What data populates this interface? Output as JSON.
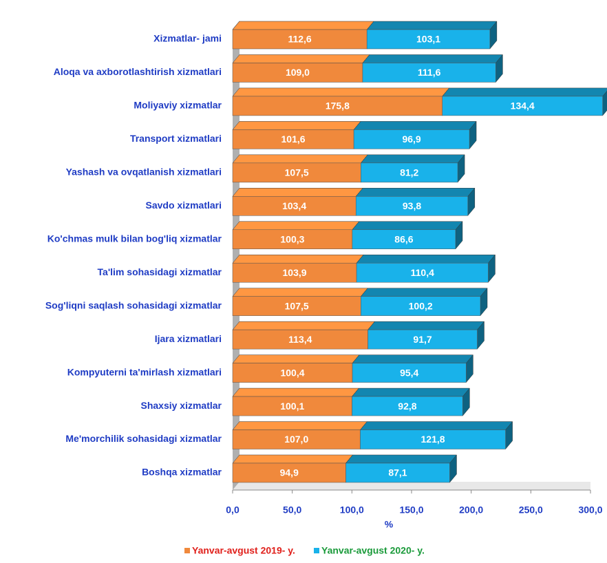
{
  "chart_data": {
    "type": "bar",
    "orientation": "horizontal",
    "stacked": true,
    "three_d": true,
    "categories": [
      "Xizmatlar- jami",
      "Aloqa va axborotlashtirish xizmatlari",
      "Moliyaviy xizmatlar",
      "Transport xizmatlari",
      "Yashash va ovqatlanish xizmatlari",
      "Savdo xizmatlari",
      "Ko'chmas mulk bilan bog'liq xizmatlar",
      "Ta'lim sohasidagi xizmatlar",
      "Sog'liqni saqlash sohasidagi xizmatlar",
      "Ijara xizmatlari",
      "Kompyuterni ta'mirlash xizmatlari",
      "Shaxsiy xizmatlar",
      "Me'morchilik sohasidagi xizmatlar",
      "Boshqa xizmatlar"
    ],
    "series": [
      {
        "name": "Yanvar-avgust 2019- y.",
        "color": "#f0893c",
        "legend_text_color": "#e0201b",
        "values": [
          112.6,
          109.0,
          175.8,
          101.6,
          107.5,
          103.4,
          100.3,
          103.9,
          107.5,
          113.4,
          100.4,
          100.1,
          107.0,
          94.9
        ],
        "value_labels": [
          "112,6",
          "109,0",
          "175,8",
          "101,6",
          "107,5",
          "103,4",
          "100,3",
          "103,9",
          "107,5",
          "113,4",
          "100,4",
          "100,1",
          "107,0",
          "94,9"
        ]
      },
      {
        "name": "Yanvar-avgust 2020- y.",
        "color": "#19b2ea",
        "legend_text_color": "#1a9a3a",
        "values": [
          103.1,
          111.6,
          134.4,
          96.9,
          81.2,
          93.8,
          86.6,
          110.4,
          100.2,
          91.7,
          95.4,
          92.8,
          121.8,
          87.1
        ],
        "value_labels": [
          "103,1",
          "111,6",
          "134,4",
          "96,9",
          "81,2",
          "93,8",
          "86,6",
          "110,4",
          "100,2",
          "91,7",
          "95,4",
          "92,8",
          "121,8",
          "87,1"
        ]
      }
    ],
    "xlabel": "%",
    "xlim": [
      0,
      300
    ],
    "xticks": [
      {
        "value": 0,
        "label": "0,0"
      },
      {
        "value": 50,
        "label": "50,0"
      },
      {
        "value": 100,
        "label": "100,0"
      },
      {
        "value": 150,
        "label": "150,0"
      },
      {
        "value": 200,
        "label": "200,0"
      },
      {
        "value": 250,
        "label": "250,0"
      },
      {
        "value": 300,
        "label": "300,0"
      }
    ],
    "grid": false,
    "legend": "bottom"
  }
}
